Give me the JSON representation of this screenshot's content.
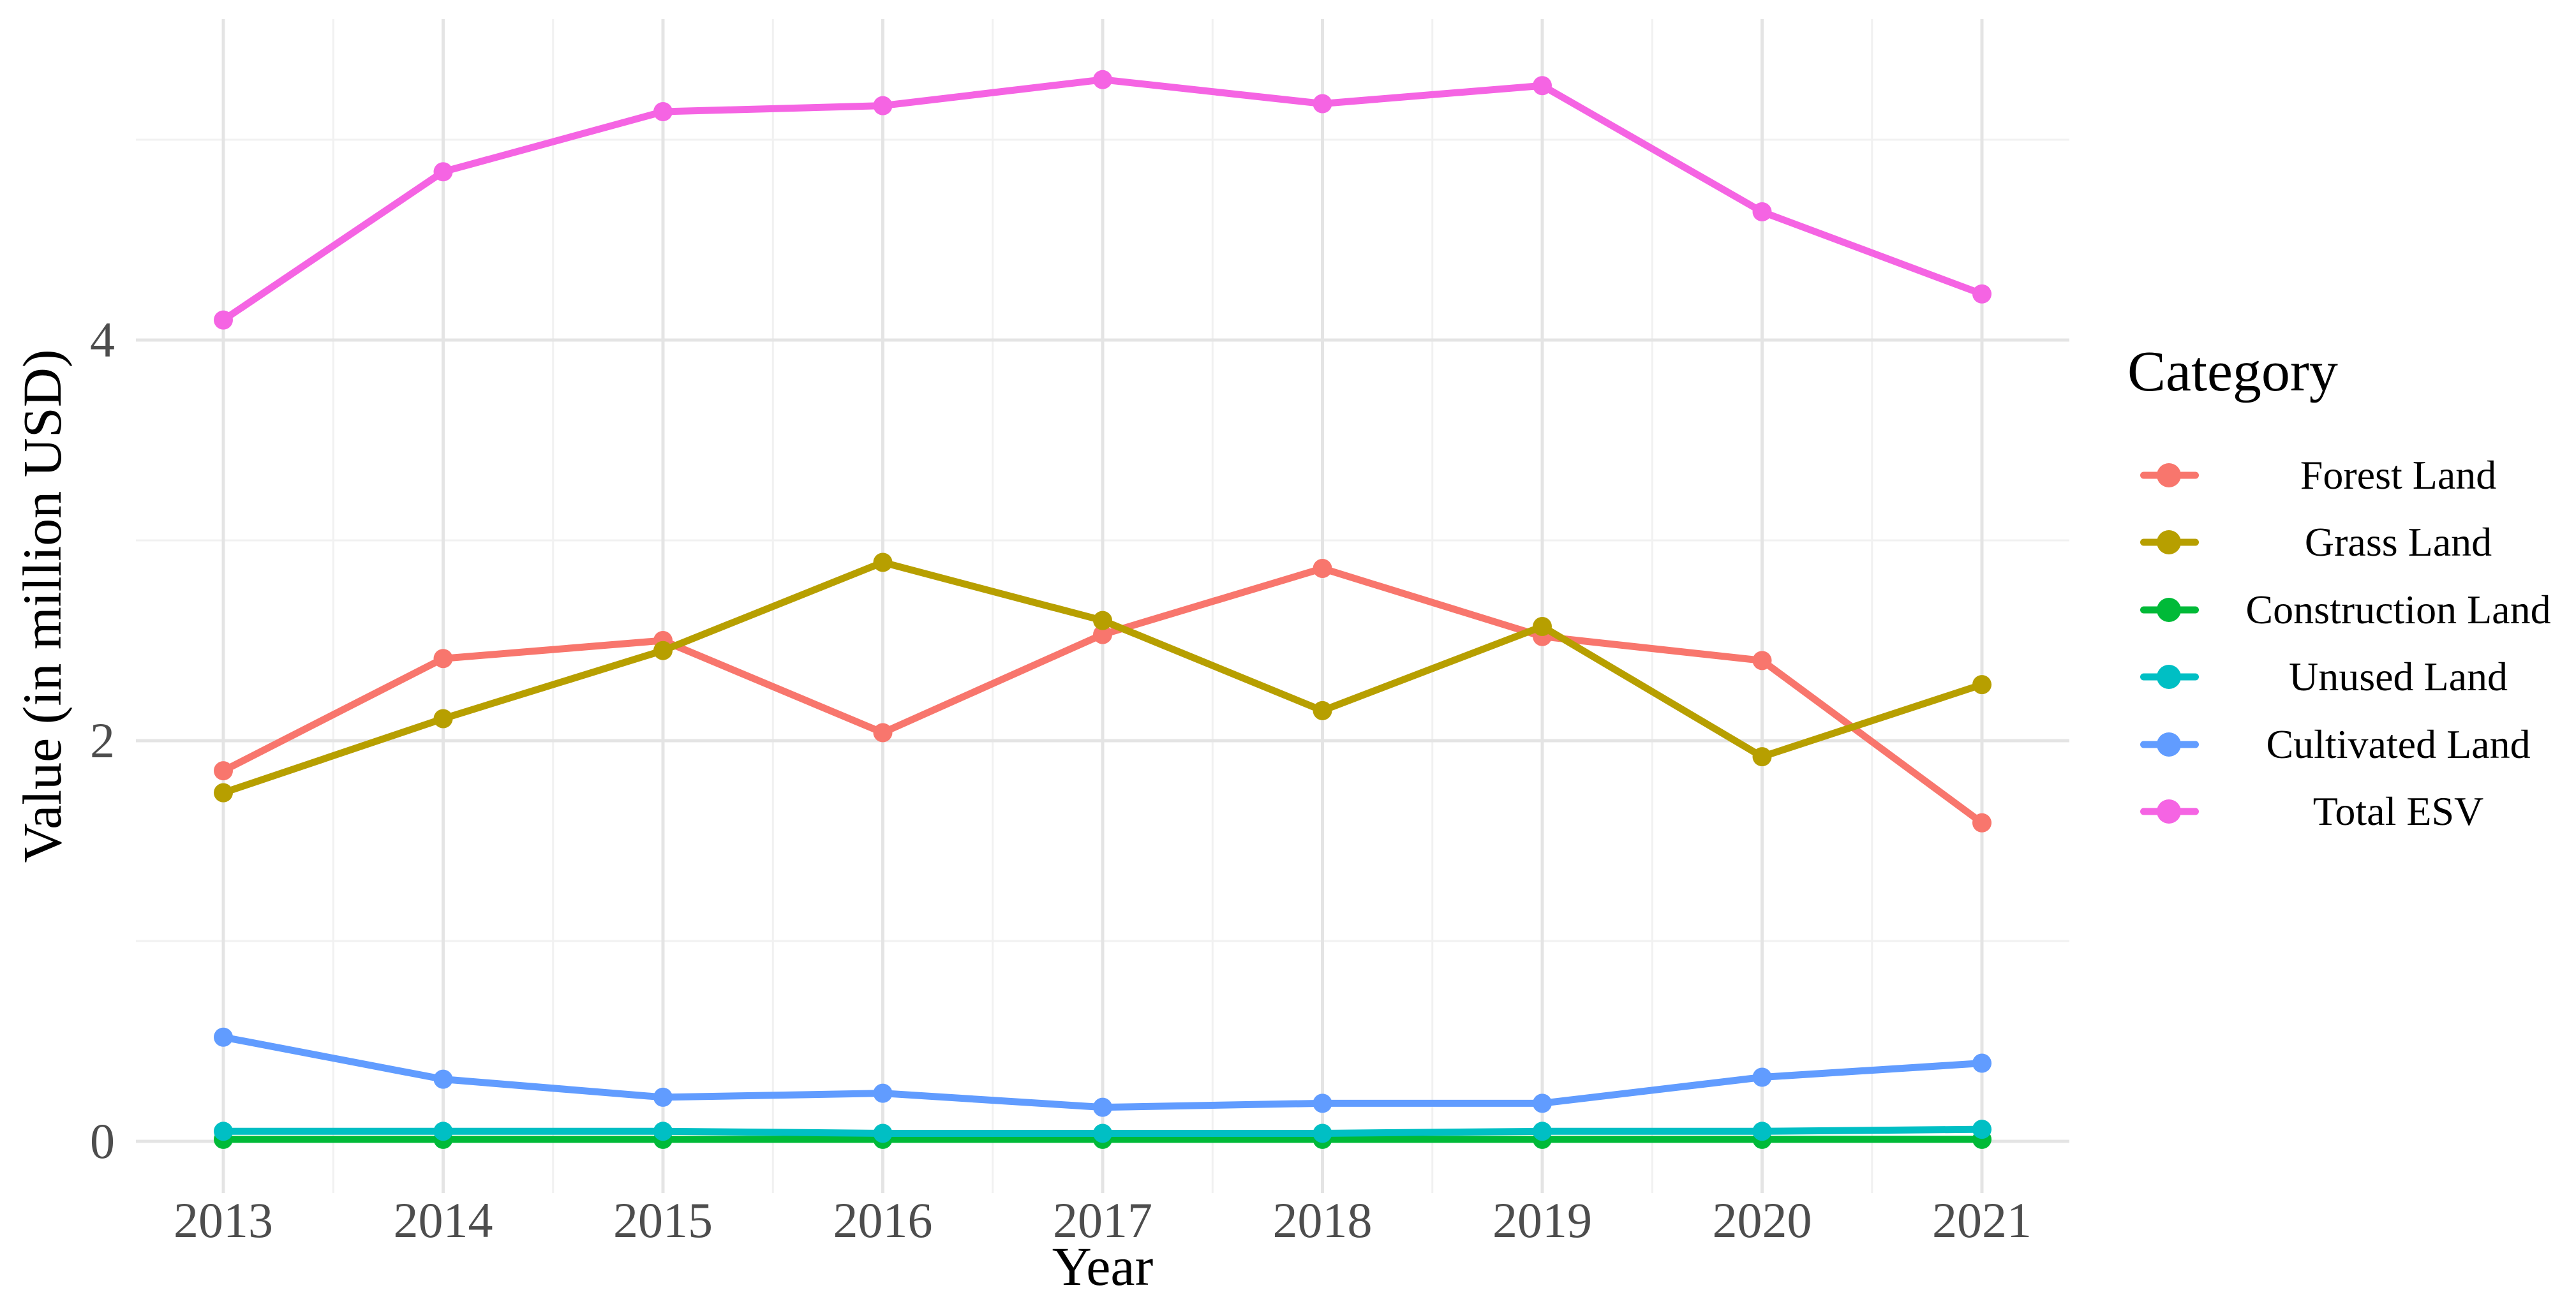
{
  "chart_data": {
    "type": "line",
    "xlabel": "Year",
    "ylabel": "Value (in million USD)",
    "legend_title": "Category",
    "legend_position": "right",
    "grid": {
      "major": true,
      "minor": true
    },
    "x": [
      "2013",
      "2014",
      "2015",
      "2016",
      "2017",
      "2018",
      "2019",
      "2020",
      "2021"
    ],
    "y_ticks": [
      {
        "value": 0,
        "label": "0"
      },
      {
        "value": 2,
        "label": "2"
      },
      {
        "value": 4,
        "label": "4"
      }
    ],
    "y_minor_gridlines": [
      1,
      3,
      5
    ],
    "ylim": [
      -0.26,
      5.6
    ],
    "series": [
      {
        "name": "Forest Land",
        "color": "#F8766D",
        "values": [
          1.85,
          2.41,
          2.5,
          2.04,
          2.53,
          2.86,
          2.52,
          2.4,
          1.59
        ]
      },
      {
        "name": "Grass Land",
        "color": "#B79F00",
        "values": [
          1.74,
          2.11,
          2.45,
          2.89,
          2.6,
          2.15,
          2.57,
          1.92,
          2.28
        ]
      },
      {
        "name": "Construction Land",
        "color": "#00BA38",
        "values": [
          0.01,
          0.01,
          0.01,
          0.01,
          0.01,
          0.01,
          0.01,
          0.01,
          0.01
        ]
      },
      {
        "name": "Unused Land",
        "color": "#00BFC4",
        "values": [
          0.05,
          0.05,
          0.05,
          0.04,
          0.04,
          0.04,
          0.05,
          0.05,
          0.06
        ]
      },
      {
        "name": "Cultivated Land",
        "color": "#619CFF",
        "values": [
          0.52,
          0.31,
          0.22,
          0.24,
          0.17,
          0.19,
          0.19,
          0.32,
          0.39
        ]
      },
      {
        "name": "Total ESV",
        "color": "#F564E3",
        "values": [
          4.1,
          4.84,
          5.14,
          5.17,
          5.3,
          5.18,
          5.27,
          4.64,
          4.23
        ]
      }
    ]
  },
  "colors": {
    "panel_bg": "#FFFFFF",
    "grid_major": "#E4E4E4",
    "grid_minor": "#F1F1F1",
    "tick_text": "#4D4D4D",
    "title_text": "#000000"
  }
}
